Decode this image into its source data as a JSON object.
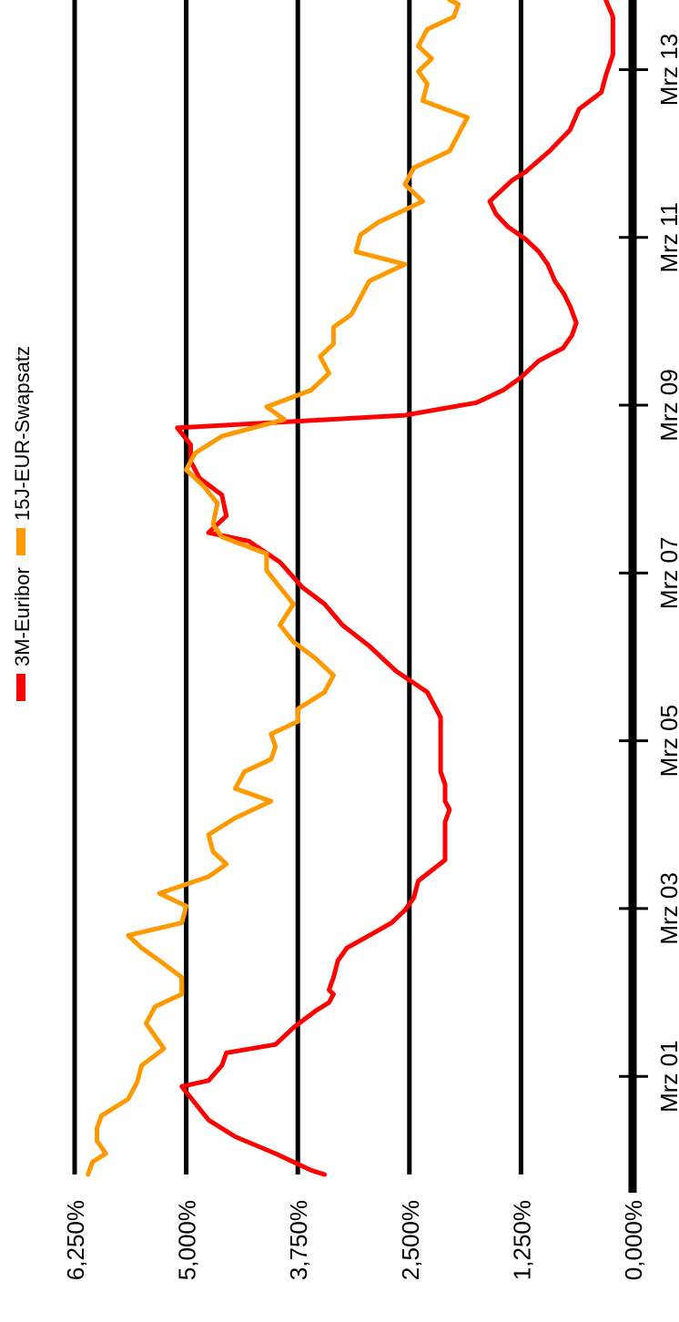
{
  "chart_data": {
    "type": "line",
    "orientation": "rotated-90-counterclockwise",
    "title": "",
    "xlabel": "",
    "ylabel": "",
    "ylim": [
      0,
      6.25
    ],
    "yticks": [
      "0,000%",
      "1,250%",
      "2,500%",
      "3,750%",
      "5,000%",
      "6,250%"
    ],
    "ytick_values": [
      0,
      1.25,
      2.5,
      3.75,
      5.0,
      6.25
    ],
    "xlim": [
      2000.0,
      2014.0
    ],
    "xticks": [
      "Mrz 01",
      "Mrz 03",
      "Mrz 05",
      "Mrz 07",
      "Mrz 09",
      "Mrz 11",
      "Mrz 13"
    ],
    "xtick_values": [
      2001.17,
      2003.17,
      2005.17,
      2007.17,
      2009.17,
      2011.17,
      2013.17
    ],
    "grid": true,
    "legend": "top",
    "colors": {
      "euribor": "#ff0000",
      "swap": "#ff9900",
      "grid": "#000000"
    },
    "series": [
      {
        "name": "3M-Euribor",
        "color": "#ff0000",
        "points": [
          [
            2000.0,
            3.45
          ],
          [
            2000.05,
            3.6
          ],
          [
            2000.25,
            4.0
          ],
          [
            2000.45,
            4.45
          ],
          [
            2000.65,
            4.75
          ],
          [
            2000.85,
            4.9
          ],
          [
            2001.05,
            5.05
          ],
          [
            2001.12,
            4.75
          ],
          [
            2001.3,
            4.6
          ],
          [
            2001.45,
            4.55
          ],
          [
            2001.55,
            4.0
          ],
          [
            2001.75,
            3.8
          ],
          [
            2001.95,
            3.55
          ],
          [
            2002.05,
            3.4
          ],
          [
            2002.15,
            3.35
          ],
          [
            2002.2,
            3.4
          ],
          [
            2002.35,
            3.35
          ],
          [
            2002.55,
            3.3
          ],
          [
            2002.7,
            3.2
          ],
          [
            2002.85,
            2.95
          ],
          [
            2003.0,
            2.7
          ],
          [
            2003.15,
            2.55
          ],
          [
            2003.3,
            2.45
          ],
          [
            2003.5,
            2.4
          ],
          [
            2003.75,
            2.1
          ],
          [
            2004.2,
            2.1
          ],
          [
            2004.35,
            2.05
          ],
          [
            2004.45,
            2.1
          ],
          [
            2004.65,
            2.1
          ],
          [
            2004.8,
            2.15
          ],
          [
            2005.1,
            2.15
          ],
          [
            2005.45,
            2.15
          ],
          [
            2005.75,
            2.3
          ],
          [
            2006.0,
            2.65
          ],
          [
            2006.3,
            2.95
          ],
          [
            2006.55,
            3.25
          ],
          [
            2006.8,
            3.45
          ],
          [
            2007.0,
            3.7
          ],
          [
            2007.3,
            3.95
          ],
          [
            2007.55,
            4.3
          ],
          [
            2007.65,
            4.75
          ],
          [
            2007.85,
            4.55
          ],
          [
            2008.1,
            4.6
          ],
          [
            2008.3,
            4.85
          ],
          [
            2008.5,
            4.95
          ],
          [
            2008.7,
            4.95
          ],
          [
            2008.9,
            5.1
          ],
          [
            2009.05,
            2.55
          ],
          [
            2009.2,
            1.75
          ],
          [
            2009.35,
            1.45
          ],
          [
            2009.5,
            1.25
          ],
          [
            2009.7,
            1.05
          ],
          [
            2009.85,
            0.78
          ],
          [
            2010.0,
            0.68
          ],
          [
            2010.15,
            0.63
          ],
          [
            2010.35,
            0.7
          ],
          [
            2010.5,
            0.77
          ],
          [
            2010.65,
            0.87
          ],
          [
            2010.85,
            0.95
          ],
          [
            2011.0,
            1.05
          ],
          [
            2011.15,
            1.2
          ],
          [
            2011.3,
            1.4
          ],
          [
            2011.45,
            1.53
          ],
          [
            2011.6,
            1.6
          ],
          [
            2011.75,
            1.45
          ],
          [
            2011.85,
            1.35
          ],
          [
            2011.95,
            1.2
          ],
          [
            2012.2,
            0.93
          ],
          [
            2012.45,
            0.7
          ],
          [
            2012.7,
            0.6
          ],
          [
            2012.9,
            0.35
          ],
          [
            2013.1,
            0.3
          ],
          [
            2013.35,
            0.22
          ],
          [
            2013.6,
            0.22
          ],
          [
            2013.8,
            0.22
          ],
          [
            2014.0,
            0.3
          ]
        ]
      },
      {
        "name": "15J-EUR-Swapsatz",
        "color": "#ff9900",
        "points": [
          [
            2000.0,
            6.1
          ],
          [
            2000.15,
            6.05
          ],
          [
            2000.25,
            5.9
          ],
          [
            2000.4,
            6.0
          ],
          [
            2000.55,
            6.0
          ],
          [
            2000.7,
            5.95
          ],
          [
            2000.9,
            5.65
          ],
          [
            2001.1,
            5.55
          ],
          [
            2001.3,
            5.5
          ],
          [
            2001.5,
            5.25
          ],
          [
            2001.65,
            5.35
          ],
          [
            2001.8,
            5.45
          ],
          [
            2002.0,
            5.35
          ],
          [
            2002.15,
            5.05
          ],
          [
            2002.35,
            5.05
          ],
          [
            2002.55,
            5.3
          ],
          [
            2002.7,
            5.5
          ],
          [
            2002.85,
            5.65
          ],
          [
            2003.0,
            5.05
          ],
          [
            2003.2,
            5.0
          ],
          [
            2003.35,
            5.3
          ],
          [
            2003.55,
            4.75
          ],
          [
            2003.7,
            4.55
          ],
          [
            2003.85,
            4.7
          ],
          [
            2004.05,
            4.75
          ],
          [
            2004.25,
            4.45
          ],
          [
            2004.45,
            4.05
          ],
          [
            2004.6,
            4.45
          ],
          [
            2004.8,
            4.35
          ],
          [
            2004.95,
            4.05
          ],
          [
            2005.1,
            4.0
          ],
          [
            2005.25,
            4.05
          ],
          [
            2005.4,
            3.75
          ],
          [
            2005.55,
            3.75
          ],
          [
            2005.75,
            3.45
          ],
          [
            2005.95,
            3.35
          ],
          [
            2006.15,
            3.55
          ],
          [
            2006.35,
            3.8
          ],
          [
            2006.55,
            3.95
          ],
          [
            2006.8,
            3.8
          ],
          [
            2007.0,
            3.95
          ],
          [
            2007.2,
            4.1
          ],
          [
            2007.4,
            4.1
          ],
          [
            2007.6,
            4.6
          ],
          [
            2007.75,
            4.7
          ],
          [
            2008.0,
            4.65
          ],
          [
            2008.2,
            4.8
          ],
          [
            2008.4,
            5.0
          ],
          [
            2008.6,
            4.9
          ],
          [
            2008.8,
            4.6
          ],
          [
            2009.0,
            3.9
          ],
          [
            2009.15,
            4.1
          ],
          [
            2009.35,
            3.6
          ],
          [
            2009.55,
            3.4
          ],
          [
            2009.75,
            3.5
          ],
          [
            2009.9,
            3.35
          ],
          [
            2010.1,
            3.35
          ],
          [
            2010.25,
            3.15
          ],
          [
            2010.45,
            3.05
          ],
          [
            2010.65,
            2.95
          ],
          [
            2010.85,
            2.55
          ],
          [
            2011.0,
            3.1
          ],
          [
            2011.2,
            3.05
          ],
          [
            2011.35,
            2.85
          ],
          [
            2011.45,
            2.65
          ],
          [
            2011.6,
            2.35
          ],
          [
            2011.8,
            2.55
          ],
          [
            2012.0,
            2.45
          ],
          [
            2012.2,
            2.05
          ],
          [
            2012.4,
            1.95
          ],
          [
            2012.6,
            1.85
          ],
          [
            2012.8,
            2.35
          ],
          [
            2013.0,
            2.3
          ],
          [
            2013.15,
            2.4
          ],
          [
            2013.3,
            2.25
          ],
          [
            2013.45,
            2.4
          ],
          [
            2013.65,
            2.3
          ],
          [
            2013.8,
            2.0
          ],
          [
            2013.95,
            1.95
          ],
          [
            2014.0,
            2.05
          ]
        ]
      }
    ]
  }
}
